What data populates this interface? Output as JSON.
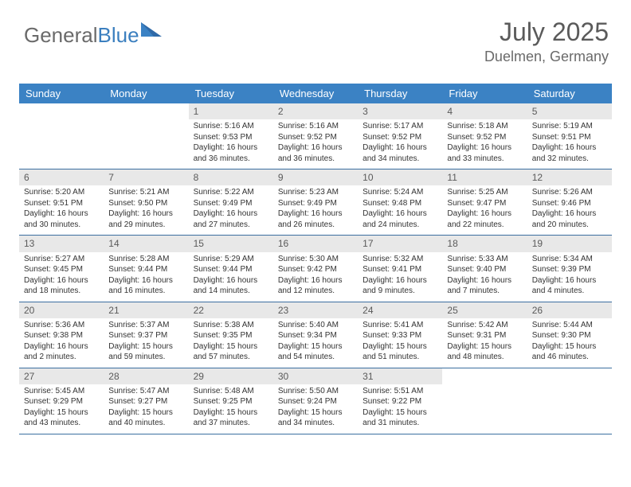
{
  "logo": {
    "text_general": "General",
    "text_blue": "Blue"
  },
  "header": {
    "month_title": "July 2025",
    "location": "Duelmen, Germany"
  },
  "colors": {
    "header_bg": "#3b82c4",
    "header_text": "#ffffff",
    "daynum_bg": "#e8e8e8",
    "divider": "#3b6fa0",
    "logo_gray": "#6a6a6a",
    "logo_blue": "#3b7fbf"
  },
  "day_names": [
    "Sunday",
    "Monday",
    "Tuesday",
    "Wednesday",
    "Thursday",
    "Friday",
    "Saturday"
  ],
  "weeks": [
    [
      {
        "empty": true
      },
      {
        "empty": true
      },
      {
        "day": "1",
        "sunrise": "Sunrise: 5:16 AM",
        "sunset": "Sunset: 9:53 PM",
        "daylight": "Daylight: 16 hours and 36 minutes."
      },
      {
        "day": "2",
        "sunrise": "Sunrise: 5:16 AM",
        "sunset": "Sunset: 9:52 PM",
        "daylight": "Daylight: 16 hours and 36 minutes."
      },
      {
        "day": "3",
        "sunrise": "Sunrise: 5:17 AM",
        "sunset": "Sunset: 9:52 PM",
        "daylight": "Daylight: 16 hours and 34 minutes."
      },
      {
        "day": "4",
        "sunrise": "Sunrise: 5:18 AM",
        "sunset": "Sunset: 9:52 PM",
        "daylight": "Daylight: 16 hours and 33 minutes."
      },
      {
        "day": "5",
        "sunrise": "Sunrise: 5:19 AM",
        "sunset": "Sunset: 9:51 PM",
        "daylight": "Daylight: 16 hours and 32 minutes."
      }
    ],
    [
      {
        "day": "6",
        "sunrise": "Sunrise: 5:20 AM",
        "sunset": "Sunset: 9:51 PM",
        "daylight": "Daylight: 16 hours and 30 minutes."
      },
      {
        "day": "7",
        "sunrise": "Sunrise: 5:21 AM",
        "sunset": "Sunset: 9:50 PM",
        "daylight": "Daylight: 16 hours and 29 minutes."
      },
      {
        "day": "8",
        "sunrise": "Sunrise: 5:22 AM",
        "sunset": "Sunset: 9:49 PM",
        "daylight": "Daylight: 16 hours and 27 minutes."
      },
      {
        "day": "9",
        "sunrise": "Sunrise: 5:23 AM",
        "sunset": "Sunset: 9:49 PM",
        "daylight": "Daylight: 16 hours and 26 minutes."
      },
      {
        "day": "10",
        "sunrise": "Sunrise: 5:24 AM",
        "sunset": "Sunset: 9:48 PM",
        "daylight": "Daylight: 16 hours and 24 minutes."
      },
      {
        "day": "11",
        "sunrise": "Sunrise: 5:25 AM",
        "sunset": "Sunset: 9:47 PM",
        "daylight": "Daylight: 16 hours and 22 minutes."
      },
      {
        "day": "12",
        "sunrise": "Sunrise: 5:26 AM",
        "sunset": "Sunset: 9:46 PM",
        "daylight": "Daylight: 16 hours and 20 minutes."
      }
    ],
    [
      {
        "day": "13",
        "sunrise": "Sunrise: 5:27 AM",
        "sunset": "Sunset: 9:45 PM",
        "daylight": "Daylight: 16 hours and 18 minutes."
      },
      {
        "day": "14",
        "sunrise": "Sunrise: 5:28 AM",
        "sunset": "Sunset: 9:44 PM",
        "daylight": "Daylight: 16 hours and 16 minutes."
      },
      {
        "day": "15",
        "sunrise": "Sunrise: 5:29 AM",
        "sunset": "Sunset: 9:44 PM",
        "daylight": "Daylight: 16 hours and 14 minutes."
      },
      {
        "day": "16",
        "sunrise": "Sunrise: 5:30 AM",
        "sunset": "Sunset: 9:42 PM",
        "daylight": "Daylight: 16 hours and 12 minutes."
      },
      {
        "day": "17",
        "sunrise": "Sunrise: 5:32 AM",
        "sunset": "Sunset: 9:41 PM",
        "daylight": "Daylight: 16 hours and 9 minutes."
      },
      {
        "day": "18",
        "sunrise": "Sunrise: 5:33 AM",
        "sunset": "Sunset: 9:40 PM",
        "daylight": "Daylight: 16 hours and 7 minutes."
      },
      {
        "day": "19",
        "sunrise": "Sunrise: 5:34 AM",
        "sunset": "Sunset: 9:39 PM",
        "daylight": "Daylight: 16 hours and 4 minutes."
      }
    ],
    [
      {
        "day": "20",
        "sunrise": "Sunrise: 5:36 AM",
        "sunset": "Sunset: 9:38 PM",
        "daylight": "Daylight: 16 hours and 2 minutes."
      },
      {
        "day": "21",
        "sunrise": "Sunrise: 5:37 AM",
        "sunset": "Sunset: 9:37 PM",
        "daylight": "Daylight: 15 hours and 59 minutes."
      },
      {
        "day": "22",
        "sunrise": "Sunrise: 5:38 AM",
        "sunset": "Sunset: 9:35 PM",
        "daylight": "Daylight: 15 hours and 57 minutes."
      },
      {
        "day": "23",
        "sunrise": "Sunrise: 5:40 AM",
        "sunset": "Sunset: 9:34 PM",
        "daylight": "Daylight: 15 hours and 54 minutes."
      },
      {
        "day": "24",
        "sunrise": "Sunrise: 5:41 AM",
        "sunset": "Sunset: 9:33 PM",
        "daylight": "Daylight: 15 hours and 51 minutes."
      },
      {
        "day": "25",
        "sunrise": "Sunrise: 5:42 AM",
        "sunset": "Sunset: 9:31 PM",
        "daylight": "Daylight: 15 hours and 48 minutes."
      },
      {
        "day": "26",
        "sunrise": "Sunrise: 5:44 AM",
        "sunset": "Sunset: 9:30 PM",
        "daylight": "Daylight: 15 hours and 46 minutes."
      }
    ],
    [
      {
        "day": "27",
        "sunrise": "Sunrise: 5:45 AM",
        "sunset": "Sunset: 9:29 PM",
        "daylight": "Daylight: 15 hours and 43 minutes."
      },
      {
        "day": "28",
        "sunrise": "Sunrise: 5:47 AM",
        "sunset": "Sunset: 9:27 PM",
        "daylight": "Daylight: 15 hours and 40 minutes."
      },
      {
        "day": "29",
        "sunrise": "Sunrise: 5:48 AM",
        "sunset": "Sunset: 9:25 PM",
        "daylight": "Daylight: 15 hours and 37 minutes."
      },
      {
        "day": "30",
        "sunrise": "Sunrise: 5:50 AM",
        "sunset": "Sunset: 9:24 PM",
        "daylight": "Daylight: 15 hours and 34 minutes."
      },
      {
        "day": "31",
        "sunrise": "Sunrise: 5:51 AM",
        "sunset": "Sunset: 9:22 PM",
        "daylight": "Daylight: 15 hours and 31 minutes."
      },
      {
        "empty": true
      },
      {
        "empty": true
      }
    ]
  ]
}
